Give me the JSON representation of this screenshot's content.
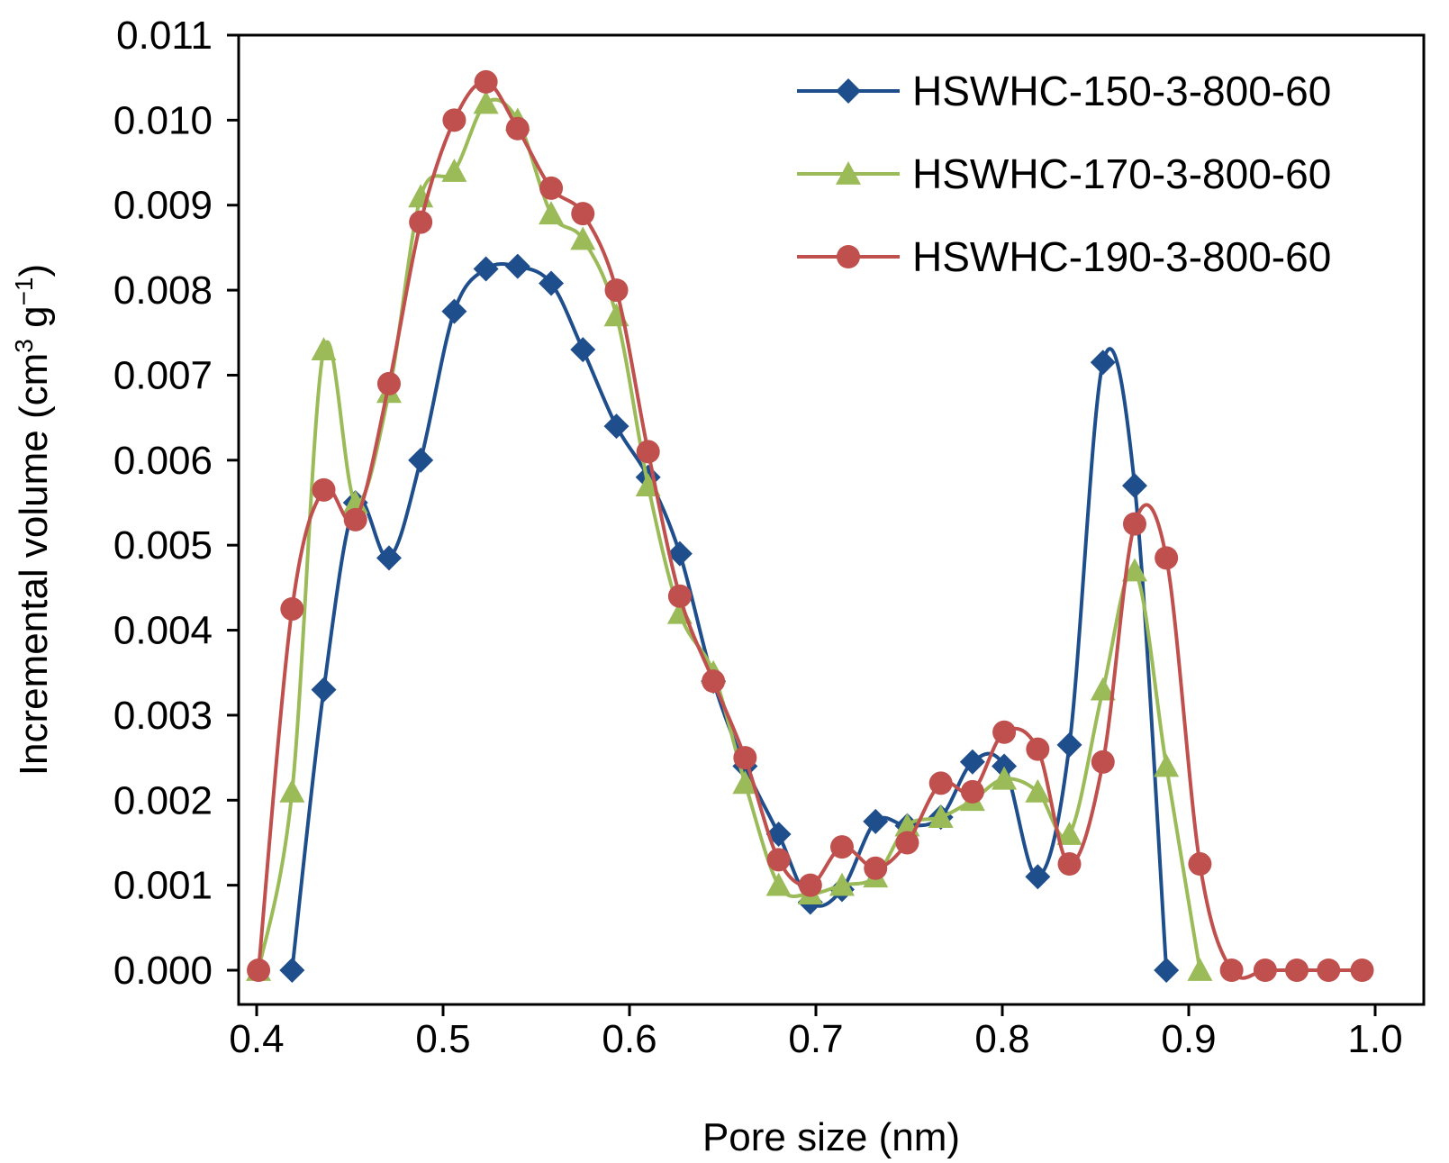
{
  "chart_data": {
    "type": "line",
    "title": "",
    "xlabel": "Pore size (nm)",
    "ylabel": "Incremental volume (cm",
    "ylabel_sup1": "3",
    "ylabel_mid": " g",
    "ylabel_sup2": "−1",
    "ylabel_end": ")",
    "xlim": [
      0.4,
      1.0
    ],
    "ylim": [
      0.0,
      0.011
    ],
    "x_ticks": [
      "0.4",
      "0.5",
      "0.6",
      "0.7",
      "0.8",
      "0.9",
      "1.0"
    ],
    "y_ticks": [
      "0.000",
      "0.001",
      "0.002",
      "0.003",
      "0.004",
      "0.005",
      "0.006",
      "0.007",
      "0.008",
      "0.009",
      "0.010",
      "0.011"
    ],
    "grid": false,
    "legend_position": "top-right",
    "series": [
      {
        "name": "HSWHC-150-3-800-60",
        "color": "#1f4e8c",
        "marker": "diamond",
        "x": [
          0.419,
          0.436,
          0.453,
          0.471,
          0.488,
          0.506,
          0.523,
          0.54,
          0.558,
          0.575,
          0.593,
          0.61,
          0.627,
          0.645,
          0.662,
          0.68,
          0.697,
          0.714,
          0.732,
          0.749,
          0.767,
          0.784,
          0.801,
          0.819,
          0.836,
          0.854,
          0.871,
          0.888
        ],
        "values": [
          0.0,
          0.0033,
          0.0055,
          0.00485,
          0.006,
          0.00775,
          0.00825,
          0.00828,
          0.00808,
          0.0073,
          0.0064,
          0.0058,
          0.0049,
          0.0034,
          0.0024,
          0.0016,
          0.0008,
          0.00095,
          0.00175,
          0.0017,
          0.0018,
          0.00245,
          0.0024,
          0.0011,
          0.00265,
          0.00715,
          0.0057,
          0.0
        ]
      },
      {
        "name": "HSWHC-170-3-800-60",
        "color": "#9bbb59",
        "marker": "triangle",
        "x": [
          0.401,
          0.419,
          0.436,
          0.453,
          0.471,
          0.488,
          0.506,
          0.523,
          0.54,
          0.558,
          0.575,
          0.593,
          0.61,
          0.627,
          0.645,
          0.662,
          0.68,
          0.697,
          0.714,
          0.732,
          0.749,
          0.767,
          0.784,
          0.801,
          0.819,
          0.836,
          0.854,
          0.871,
          0.888,
          0.906
        ],
        "values": [
          0.0,
          0.0021,
          0.0073,
          0.0055,
          0.0068,
          0.0091,
          0.0094,
          0.0102,
          0.01,
          0.0089,
          0.0086,
          0.0077,
          0.0057,
          0.0042,
          0.0035,
          0.0022,
          0.001,
          0.0009,
          0.001,
          0.0011,
          0.0017,
          0.0018,
          0.002,
          0.00225,
          0.0021,
          0.0016,
          0.0033,
          0.0047,
          0.0024,
          0.0
        ]
      },
      {
        "name": "HSWHC-190-3-800-60",
        "color": "#c0504d",
        "marker": "circle",
        "x": [
          0.401,
          0.419,
          0.436,
          0.453,
          0.471,
          0.488,
          0.506,
          0.523,
          0.54,
          0.558,
          0.575,
          0.593,
          0.61,
          0.627,
          0.645,
          0.662,
          0.68,
          0.697,
          0.714,
          0.732,
          0.749,
          0.767,
          0.784,
          0.801,
          0.819,
          0.836,
          0.854,
          0.871,
          0.888,
          0.906,
          0.923,
          0.941,
          0.958,
          0.975,
          0.993
        ],
        "values": [
          0.0,
          0.00425,
          0.00565,
          0.0053,
          0.0069,
          0.0088,
          0.01,
          0.01045,
          0.0099,
          0.0092,
          0.0089,
          0.008,
          0.0061,
          0.0044,
          0.0034,
          0.0025,
          0.0013,
          0.001,
          0.00145,
          0.0012,
          0.0015,
          0.0022,
          0.0021,
          0.0028,
          0.0026,
          0.00125,
          0.00245,
          0.00525,
          0.00485,
          0.00125,
          0.0,
          0.0,
          0.0,
          0.0,
          0.0
        ]
      }
    ]
  }
}
